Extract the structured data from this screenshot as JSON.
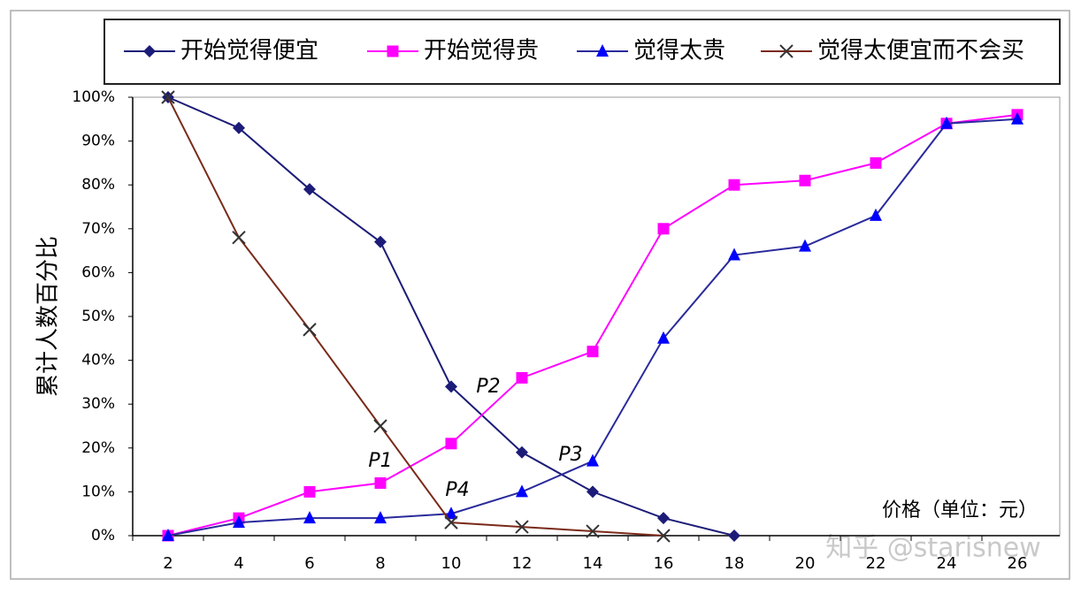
{
  "chart_data": {
    "type": "line",
    "categories": [
      "2",
      "4",
      "6",
      "8",
      "10",
      "12",
      "14",
      "16",
      "18",
      "20",
      "22",
      "24",
      "26"
    ],
    "series": [
      {
        "name": "开始觉得便宜",
        "color": "#1c1c78",
        "marker": "diamond",
        "values": [
          100,
          93,
          79,
          67,
          34,
          19,
          10,
          4,
          0,
          null,
          null,
          null,
          null
        ]
      },
      {
        "name": "开始觉得贵",
        "color": "#ff00ff",
        "marker": "square",
        "values": [
          0,
          4,
          10,
          12,
          21,
          36,
          42,
          70,
          80,
          81,
          85,
          94,
          96
        ]
      },
      {
        "name": "觉得太贵",
        "color": "#2a2a9c",
        "marker": "triangle",
        "values": [
          0,
          3,
          4,
          4,
          5,
          10,
          17,
          45,
          64,
          66,
          73,
          94,
          95
        ]
      },
      {
        "name": "觉得太便宜而不会买",
        "color": "#7a2a1a",
        "marker": "x",
        "values": [
          100,
          68,
          47,
          25,
          3,
          2,
          1,
          0,
          null,
          null,
          null,
          null,
          null
        ]
      }
    ],
    "ylim": [
      0,
      100
    ],
    "yticks": [
      {
        "value": 0,
        "label": "0%"
      },
      {
        "value": 10,
        "label": "10%"
      },
      {
        "value": 20,
        "label": "20%"
      },
      {
        "value": 30,
        "label": "30%"
      },
      {
        "value": 40,
        "label": "40%"
      },
      {
        "value": 50,
        "label": "50%"
      },
      {
        "value": 60,
        "label": "60%"
      },
      {
        "value": 70,
        "label": "70%"
      },
      {
        "value": 80,
        "label": "80%"
      },
      {
        "value": 90,
        "label": "90%"
      },
      {
        "value": 100,
        "label": "100%"
      }
    ],
    "y_label": "累计人数百分比",
    "x_label": "价格（单位：元）",
    "annotations": [
      "P1",
      "P2",
      "P3",
      "P4"
    ],
    "watermark": "知乎 @starisnew",
    "grid": false
  }
}
